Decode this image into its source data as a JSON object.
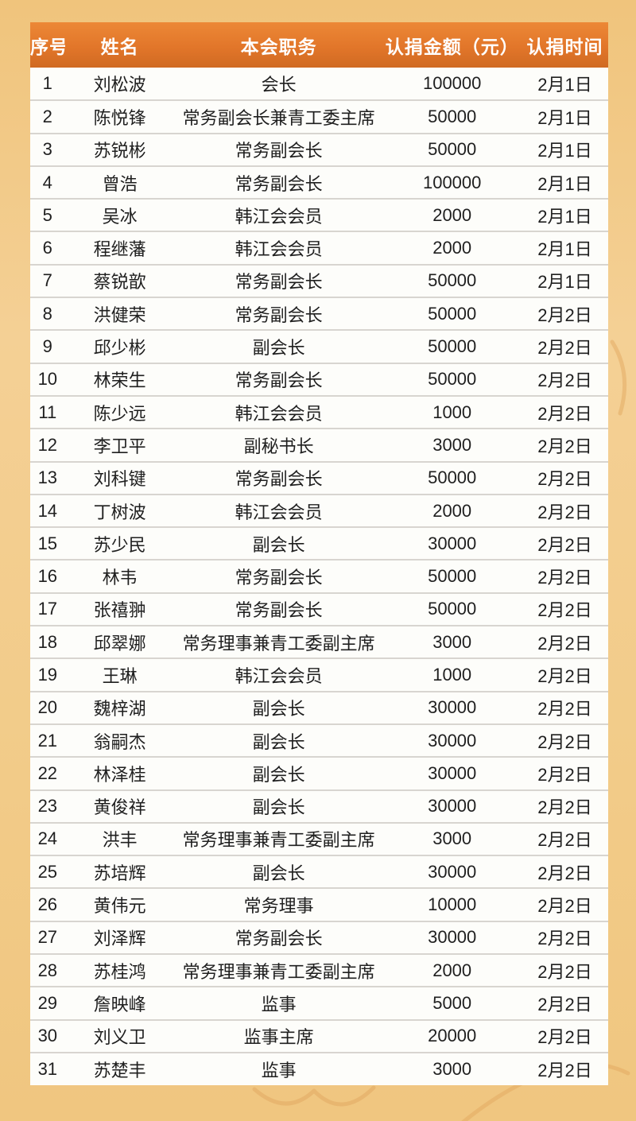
{
  "colors": {
    "page_bg": "#f2c986",
    "header_bg": "#e2762a",
    "header_bg_dark": "#d06a22",
    "header_text": "#ffffff",
    "row_bg": "#fdfdfa",
    "row_divider": "#d8d5d0",
    "cell_text": "#1f1f1f",
    "decor_stroke": "#dfa35c"
  },
  "chart_data": {
    "type": "table",
    "columns": [
      "序号",
      "姓名",
      "本会职务",
      "认捐金额（元）",
      "认捐时间"
    ],
    "rows": [
      [
        "1",
        "刘松波",
        "会长",
        "100000",
        "2月1日"
      ],
      [
        "2",
        "陈悦锋",
        "常务副会长兼青工委主席",
        "50000",
        "2月1日"
      ],
      [
        "3",
        "苏锐彬",
        "常务副会长",
        "50000",
        "2月1日"
      ],
      [
        "4",
        "曾浩",
        "常务副会长",
        "100000",
        "2月1日"
      ],
      [
        "5",
        "吴冰",
        "韩江会会员",
        "2000",
        "2月1日"
      ],
      [
        "6",
        "程继藩",
        "韩江会会员",
        "2000",
        "2月1日"
      ],
      [
        "7",
        "蔡锐歆",
        "常务副会长",
        "50000",
        "2月1日"
      ],
      [
        "8",
        "洪健荣",
        "常务副会长",
        "50000",
        "2月2日"
      ],
      [
        "9",
        "邱少彬",
        "副会长",
        "50000",
        "2月2日"
      ],
      [
        "10",
        "林荣生",
        "常务副会长",
        "50000",
        "2月2日"
      ],
      [
        "11",
        "陈少远",
        "韩江会会员",
        "1000",
        "2月2日"
      ],
      [
        "12",
        "李卫平",
        "副秘书长",
        "3000",
        "2月2日"
      ],
      [
        "13",
        "刘科键",
        "常务副会长",
        "50000",
        "2月2日"
      ],
      [
        "14",
        "丁树波",
        "韩江会会员",
        "2000",
        "2月2日"
      ],
      [
        "15",
        "苏少民",
        "副会长",
        "30000",
        "2月2日"
      ],
      [
        "16",
        "林韦",
        "常务副会长",
        "50000",
        "2月2日"
      ],
      [
        "17",
        "张禧翀",
        "常务副会长",
        "50000",
        "2月2日"
      ],
      [
        "18",
        "邱翠娜",
        "常务理事兼青工委副主席",
        "3000",
        "2月2日"
      ],
      [
        "19",
        "王琳",
        "韩江会会员",
        "1000",
        "2月2日"
      ],
      [
        "20",
        "魏梓湖",
        "副会长",
        "30000",
        "2月2日"
      ],
      [
        "21",
        "翁嗣杰",
        "副会长",
        "30000",
        "2月2日"
      ],
      [
        "22",
        "林泽桂",
        "副会长",
        "30000",
        "2月2日"
      ],
      [
        "23",
        "黄俊祥",
        "副会长",
        "30000",
        "2月2日"
      ],
      [
        "24",
        "洪丰",
        "常务理事兼青工委副主席",
        "3000",
        "2月2日"
      ],
      [
        "25",
        "苏培辉",
        "副会长",
        "30000",
        "2月2日"
      ],
      [
        "26",
        "黄伟元",
        "常务理事",
        "10000",
        "2月2日"
      ],
      [
        "27",
        "刘泽辉",
        "常务副会长",
        "30000",
        "2月2日"
      ],
      [
        "28",
        "苏桂鸿",
        "常务理事兼青工委副主席",
        "2000",
        "2月2日"
      ],
      [
        "29",
        "詹映峰",
        "监事",
        "5000",
        "2月2日"
      ],
      [
        "30",
        "刘义卫",
        "监事主席",
        "20000",
        "2月2日"
      ],
      [
        "31",
        "苏楚丰",
        "监事",
        "3000",
        "2月2日"
      ]
    ]
  }
}
